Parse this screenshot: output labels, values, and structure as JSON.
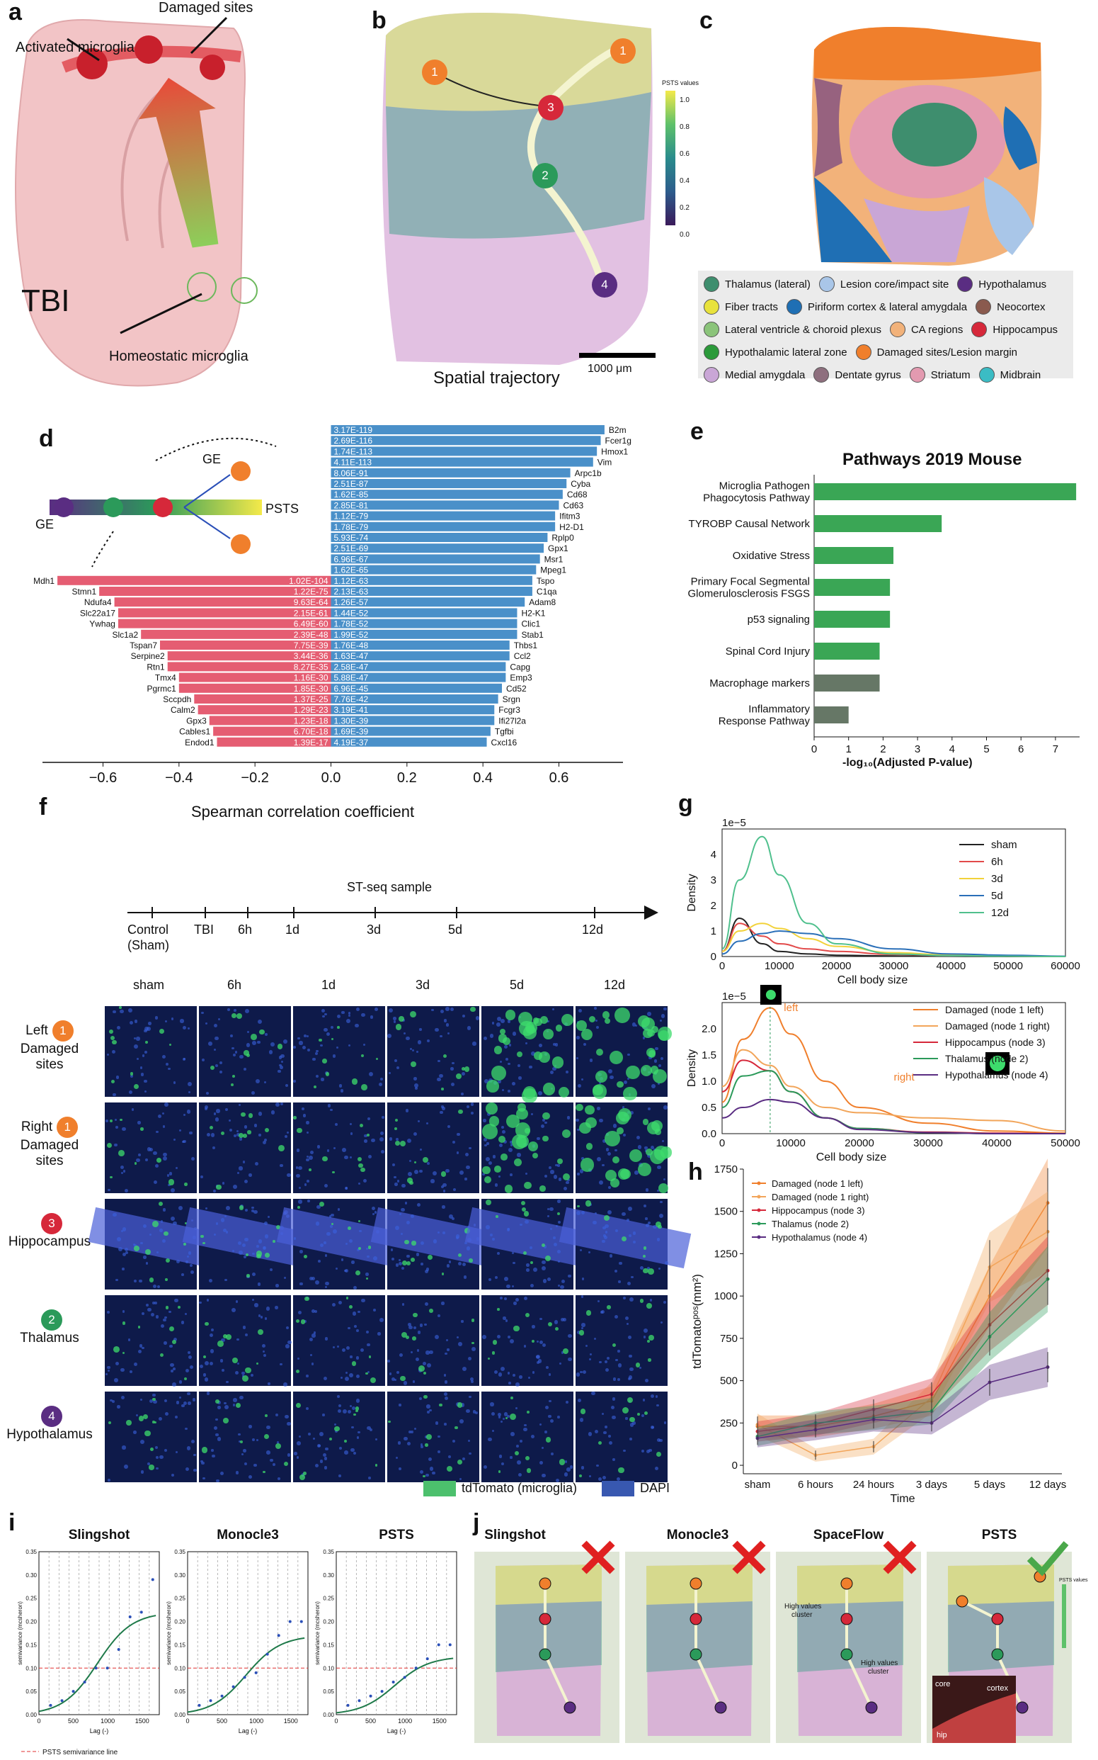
{
  "panels": {
    "a": "a",
    "b": "b",
    "c": "c",
    "d": "d",
    "e": "e",
    "f": "f",
    "g": "g",
    "h": "h",
    "i": "i",
    "j": "j"
  },
  "panel_a": {
    "damaged_sites": "Damaged sites",
    "activated": "Activated microglia",
    "tbi": "TBI",
    "homeostatic": "Homeostatic microglia"
  },
  "panel_b": {
    "colorbar_title": "PSTS values",
    "cb_ticks": [
      "1.0",
      "0.8",
      "0.6",
      "0.4",
      "0.2",
      "0.0"
    ],
    "scalebar": "1000 μm",
    "caption": "Spatial trajectory",
    "nodes": [
      "1",
      "1",
      "3",
      "2",
      "4"
    ]
  },
  "panel_c": {
    "legend": [
      {
        "label": "Thalamus (lateral)",
        "color": "#3e8e6e"
      },
      {
        "label": "Lesion core/impact site",
        "color": "#a9c6e8"
      },
      {
        "label": "Hypothalamus",
        "color": "#5a2d82"
      },
      {
        "label": "Fiber tracts",
        "color": "#e8e23c"
      },
      {
        "label": "Piriform cortex & lateral amygdala",
        "color": "#1f6fb4"
      },
      {
        "label": "Neocortex",
        "color": "#8a5a4e"
      },
      {
        "label": "Lateral ventricle & choroid plexus",
        "color": "#8bc47a"
      },
      {
        "label": "CA regions",
        "color": "#f2b27a"
      },
      {
        "label": "Hippocampus",
        "color": "#d6283a"
      },
      {
        "label": "Hypothalamic lateral zone",
        "color": "#2b9a3a"
      },
      {
        "label": "Damaged sites/Lesion margin",
        "color": "#f07f2c"
      },
      {
        "label": "Medial amygdala",
        "color": "#c9a6d6"
      },
      {
        "label": "Dentate gyrus",
        "color": "#8e6f7e"
      },
      {
        "label": "Striatum",
        "color": "#e39ab0"
      },
      {
        "label": "Midbrain",
        "color": "#3bbcc4"
      }
    ]
  },
  "panel_d": {
    "ge": "GE",
    "ge2": "GE",
    "psts": "PSTS",
    "xlabel": "Spearman correlation coefficient",
    "xticks": [
      "−0.6",
      "−0.4",
      "−0.2",
      "0.0",
      "0.2",
      "0.4",
      "0.6"
    ],
    "pos": [
      {
        "gene": "B2m",
        "p": "3.17E-119",
        "r": 0.72
      },
      {
        "gene": "Fcer1g",
        "p": "2.69E-116",
        "r": 0.71
      },
      {
        "gene": "Hmox1",
        "p": "1.74E-113",
        "r": 0.7
      },
      {
        "gene": "Vim",
        "p": "4.11E-113",
        "r": 0.69
      },
      {
        "gene": "Arpc1b",
        "p": "8.06E-91",
        "r": 0.63
      },
      {
        "gene": "Cyba",
        "p": "2.51E-87",
        "r": 0.62
      },
      {
        "gene": "Cd68",
        "p": "1.62E-85",
        "r": 0.61
      },
      {
        "gene": "Cd63",
        "p": "2.85E-81",
        "r": 0.6
      },
      {
        "gene": "Ifitm3",
        "p": "1.12E-79",
        "r": 0.59
      },
      {
        "gene": "H2-D1",
        "p": "1.78E-79",
        "r": 0.59
      },
      {
        "gene": "Rplp0",
        "p": "5.93E-74",
        "r": 0.57
      },
      {
        "gene": "Gpx1",
        "p": "2.51E-69",
        "r": 0.56
      },
      {
        "gene": "Msr1",
        "p": "6.96E-67",
        "r": 0.55
      },
      {
        "gene": "Mpeg1",
        "p": "1.62E-65",
        "r": 0.54
      },
      {
        "gene": "Tspo",
        "p": "1.12E-63",
        "r": 0.53
      },
      {
        "gene": "C1qa",
        "p": "2.13E-63",
        "r": 0.53
      },
      {
        "gene": "Adam8",
        "p": "1.26E-57",
        "r": 0.51
      },
      {
        "gene": "H2-K1",
        "p": "1.44E-52",
        "r": 0.49
      },
      {
        "gene": "Clic1",
        "p": "1.78E-52",
        "r": 0.49
      },
      {
        "gene": "Stab1",
        "p": "1.99E-52",
        "r": 0.49
      },
      {
        "gene": "Thbs1",
        "p": "1.76E-48",
        "r": 0.47
      },
      {
        "gene": "Ccl2",
        "p": "1.63E-47",
        "r": 0.47
      },
      {
        "gene": "Capg",
        "p": "2.58E-47",
        "r": 0.46
      },
      {
        "gene": "Emp3",
        "p": "5.88E-47",
        "r": 0.46
      },
      {
        "gene": "Cd52",
        "p": "6.96E-45",
        "r": 0.45
      },
      {
        "gene": "Srgn",
        "p": "7.76E-42",
        "r": 0.44
      },
      {
        "gene": "Fcgr3",
        "p": "3.19E-41",
        "r": 0.43
      },
      {
        "gene": "Ifi27l2a",
        "p": "1.30E-39",
        "r": 0.43
      },
      {
        "gene": "Tgfbi",
        "p": "1.69E-39",
        "r": 0.42
      },
      {
        "gene": "Cxcl16",
        "p": "4.19E-37",
        "r": 0.41
      }
    ],
    "neg": [
      {
        "gene": "Mdh1",
        "p": "1.02E-104",
        "r": -0.72
      },
      {
        "gene": "Stmn1",
        "p": "1.22E-75",
        "r": -0.61
      },
      {
        "gene": "Ndufa4",
        "p": "9.63E-64",
        "r": -0.57
      },
      {
        "gene": "Slc22a17",
        "p": "2.15E-61",
        "r": -0.56
      },
      {
        "gene": "Ywhag",
        "p": "6.49E-60",
        "r": -0.56
      },
      {
        "gene": "Slc1a2",
        "p": "2.39E-48",
        "r": -0.5
      },
      {
        "gene": "Tspan7",
        "p": "7.75E-39",
        "r": -0.45
      },
      {
        "gene": "Serpine2",
        "p": "3.44E-36",
        "r": -0.43
      },
      {
        "gene": "Rtn1",
        "p": "8.27E-35",
        "r": -0.43
      },
      {
        "gene": "Tmx4",
        "p": "1.16E-30",
        "r": -0.4
      },
      {
        "gene": "Pgrmc1",
        "p": "1.85E-30",
        "r": -0.4
      },
      {
        "gene": "Sccpdh",
        "p": "1.37E-25",
        "r": -0.36
      },
      {
        "gene": "Calm2",
        "p": "1.29E-23",
        "r": -0.35
      },
      {
        "gene": "Gpx3",
        "p": "1.23E-18",
        "r": -0.32
      },
      {
        "gene": "Cables1",
        "p": "6.70E-18",
        "r": -0.31
      },
      {
        "gene": "Endod1",
        "p": "1.39E-17",
        "r": -0.3
      }
    ]
  },
  "panel_e": {
    "title": "Pathways 2019 Mouse",
    "xlabel": "-log₁₀(Adjusted P-value)",
    "xticks": [
      "0",
      "1",
      "2",
      "3",
      "4",
      "5",
      "6",
      "7"
    ],
    "bars": [
      {
        "label": "Microglia Pathogen\nPhagocytosis Pathway",
        "v": 7.6,
        "c": "#3aa655"
      },
      {
        "label": "TYROBP Causal Network",
        "v": 3.7,
        "c": "#3aa655"
      },
      {
        "label": "Oxidative Stress",
        "v": 2.3,
        "c": "#3aa655"
      },
      {
        "label": "Primary Focal Segmental\nGlomerulosclerosis FSGS",
        "v": 2.2,
        "c": "#3aa655"
      },
      {
        "label": "p53 signaling",
        "v": 2.2,
        "c": "#3aa655"
      },
      {
        "label": "Spinal Cord Injury",
        "v": 1.9,
        "c": "#3aa655"
      },
      {
        "label": "Macrophage markers",
        "v": 1.9,
        "c": "#667766"
      },
      {
        "label": "Inflammatory\nResponse Pathway",
        "v": 1.0,
        "c": "#667766"
      }
    ]
  },
  "panel_f": {
    "timeline_title": "ST-seq sample",
    "timeline": [
      "Control",
      "TBI",
      "6h",
      "1d",
      "3d",
      "5d",
      "12d"
    ],
    "control_sub": "(Sham)",
    "cols": [
      "sham",
      "6h",
      "1d",
      "3d",
      "5d",
      "12d"
    ],
    "rows": [
      {
        "n": "1",
        "c": "#f07f2c",
        "l1": "Left",
        "l2": "Damaged",
        "l3": "sites"
      },
      {
        "n": "1",
        "c": "#f07f2c",
        "l1": "Right",
        "l2": "Damaged",
        "l3": "sites"
      },
      {
        "n": "3",
        "c": "#d6283a",
        "l1": "",
        "l2": "Hippocampus",
        "l3": ""
      },
      {
        "n": "2",
        "c": "#2b9a5a",
        "l1": "",
        "l2": "Thalamus",
        "l3": ""
      },
      {
        "n": "4",
        "c": "#5a2d82",
        "l1": "",
        "l2": "Hypothalamus",
        "l3": ""
      }
    ],
    "legend_tdt": "tdTomato (microglia)",
    "legend_dapi": "DAPI"
  },
  "panel_g": {
    "exp": "1e−5",
    "ylabel": "Density",
    "xlabel": "Cell body size",
    "top_yticks": [
      "4",
      "3",
      "2",
      "1",
      "0"
    ],
    "xticks": [
      "0",
      "10000",
      "20000",
      "30000",
      "40000",
      "50000",
      "60000"
    ],
    "top_legend": [
      {
        "label": "sham",
        "color": "#222222"
      },
      {
        "label": "6h",
        "color": "#e24a4a"
      },
      {
        "label": "3d",
        "color": "#f2d23a"
      },
      {
        "label": "5d",
        "color": "#2a6fb8"
      },
      {
        "label": "12d",
        "color": "#4fc08d"
      }
    ],
    "bot_yticks": [
      "2.0",
      "1.5",
      "1.0",
      "0.5",
      "0.0"
    ],
    "bot_xticks": [
      "0",
      "10000",
      "20000",
      "30000",
      "40000",
      "50000"
    ],
    "bot_legend": [
      {
        "label": "Damaged (node 1 left)",
        "color": "#f07f2c"
      },
      {
        "label": "Damaged (node 1 right)",
        "color": "#f2a55a"
      },
      {
        "label": "Hippocampus (node 3)",
        "color": "#d6283a"
      },
      {
        "label": "Thalamus (node 2)",
        "color": "#2b9a5a"
      },
      {
        "label": "Hypothalamus (node 4)",
        "color": "#5a2d82"
      }
    ],
    "left": "left",
    "right": "right"
  },
  "panel_h": {
    "ylabel": "tdTomatoᵖᵒˢ(mm²)",
    "xlabel": "Time",
    "yticks": [
      "1750",
      "1500",
      "1250",
      "1000",
      "750",
      "500",
      "250",
      "0"
    ],
    "xticks": [
      "sham",
      "6 hours",
      "24 hours",
      "3 days",
      "5 days",
      "12 days"
    ],
    "legend": [
      {
        "label": "Damaged (node 1 left)",
        "color": "#f07f2c"
      },
      {
        "label": "Damaged (node 1 right)",
        "color": "#f2a55a"
      },
      {
        "label": "Hippocampus (node 3)",
        "color": "#d6283a"
      },
      {
        "label": "Thalamus (node 2)",
        "color": "#2b9a5a"
      },
      {
        "label": "Hypothalamus (node 4)",
        "color": "#5a2d82"
      }
    ]
  },
  "panel_i": {
    "titles": [
      "Slingshot",
      "Monocle3",
      "PSTS"
    ],
    "ylabel": "semivariance (mcsheron)",
    "xlabel": "Lag (-)",
    "yticks": [
      "0.35",
      "0.30",
      "0.25",
      "0.20",
      "0.15",
      "0.10",
      "0.05",
      "0.00"
    ],
    "xticks": [
      "0",
      "500",
      "1000",
      "1500"
    ],
    "legend": "PSTS semivariance line"
  },
  "panel_j": {
    "titles": [
      "Slingshot",
      "Monocle3",
      "SpaceFlow",
      "PSTS"
    ],
    "hv1": "High values cluster",
    "hv2": "High values cluster",
    "core": "core",
    "cortex": "cortex",
    "hip": "hip",
    "cb_title": "PSTS values"
  },
  "chart_data": [
    {
      "type": "bar",
      "title": "",
      "xlabel": "Spearman correlation coefficient",
      "categories": [
        "B2m",
        "Fcer1g",
        "Hmox1",
        "Vim",
        "Arpc1b",
        "Cyba",
        "Cd68",
        "Cd63",
        "Ifitm3",
        "H2-D1",
        "Rplp0",
        "Gpx1",
        "Msr1",
        "Mpeg1",
        "Tspo",
        "C1qa",
        "Adam8",
        "H2-K1",
        "Clic1",
        "Stab1",
        "Thbs1",
        "Ccl2",
        "Capg",
        "Emp3",
        "Cd52",
        "Srgn",
        "Fcgr3",
        "Ifi27l2a",
        "Tgfbi",
        "Cxcl16"
      ],
      "values": [
        0.72,
        0.71,
        0.7,
        0.69,
        0.63,
        0.62,
        0.61,
        0.6,
        0.59,
        0.59,
        0.57,
        0.56,
        0.55,
        0.54,
        0.53,
        0.53,
        0.51,
        0.49,
        0.49,
        0.49,
        0.47,
        0.47,
        0.46,
        0.46,
        0.45,
        0.44,
        0.43,
        0.43,
        0.42,
        0.41
      ],
      "xlim": [
        -0.75,
        0.75
      ]
    },
    {
      "type": "bar",
      "title": "Pathways 2019 Mouse",
      "xlabel": "-log10(Adjusted P-value)",
      "categories": [
        "Microglia Pathogen Phagocytosis Pathway",
        "TYROBP Causal Network",
        "Oxidative Stress",
        "Primary Focal Segmental Glomerulosclerosis FSGS",
        "p53 signaling",
        "Spinal Cord Injury",
        "Macrophage markers",
        "Inflammatory Response Pathway"
      ],
      "values": [
        7.6,
        3.7,
        2.3,
        2.2,
        2.2,
        1.9,
        1.9,
        1.0
      ],
      "xlim": [
        0,
        7.7
      ]
    },
    {
      "type": "line",
      "title": "",
      "xlabel": "Time",
      "ylabel": "tdTomato pos (mm2)",
      "categories": [
        "sham",
        "6 hours",
        "24 hours",
        "3 days",
        "5 days",
        "12 days"
      ],
      "series": [
        {
          "name": "Damaged (node 1 left)",
          "values": [
            230,
            230,
            290,
            380,
            1000,
            1550
          ]
        },
        {
          "name": "Damaged (node 1 right)",
          "values": [
            240,
            60,
            110,
            400,
            1170,
            1380
          ]
        },
        {
          "name": "Hippocampus (node 3)",
          "values": [
            200,
            240,
            330,
            420,
            830,
            1150
          ]
        },
        {
          "name": "Thalamus (node 2)",
          "values": [
            170,
            250,
            280,
            320,
            760,
            1100
          ]
        },
        {
          "name": "Hypothalamus (node 4)",
          "values": [
            160,
            210,
            270,
            250,
            490,
            580
          ]
        }
      ],
      "ylim": [
        -50,
        1750
      ]
    },
    {
      "type": "line",
      "title": "",
      "xlabel": "Cell body size",
      "ylabel": "Density",
      "x": [
        0,
        3000,
        7000,
        10000,
        15000,
        20000,
        30000,
        40000,
        50000,
        60000
      ],
      "series": [
        {
          "name": "sham",
          "values": [
            0.2,
            1.5,
            0.5,
            0.2,
            0.1,
            0.05,
            0.02,
            0.01,
            0,
            0
          ]
        },
        {
          "name": "6h",
          "values": [
            0.2,
            1.3,
            0.8,
            0.5,
            0.3,
            0.2,
            0.08,
            0.03,
            0.01,
            0
          ]
        },
        {
          "name": "3d",
          "values": [
            0.2,
            1.0,
            1.3,
            1.1,
            0.7,
            0.4,
            0.15,
            0.06,
            0.02,
            0
          ]
        },
        {
          "name": "5d",
          "values": [
            0.1,
            0.6,
            0.9,
            1.0,
            0.9,
            0.7,
            0.3,
            0.1,
            0.05,
            0.01
          ]
        },
        {
          "name": "12d",
          "values": [
            0.3,
            3.0,
            4.7,
            3.2,
            1.3,
            0.5,
            0.1,
            0.03,
            0.01,
            0
          ]
        }
      ]
    }
  ]
}
